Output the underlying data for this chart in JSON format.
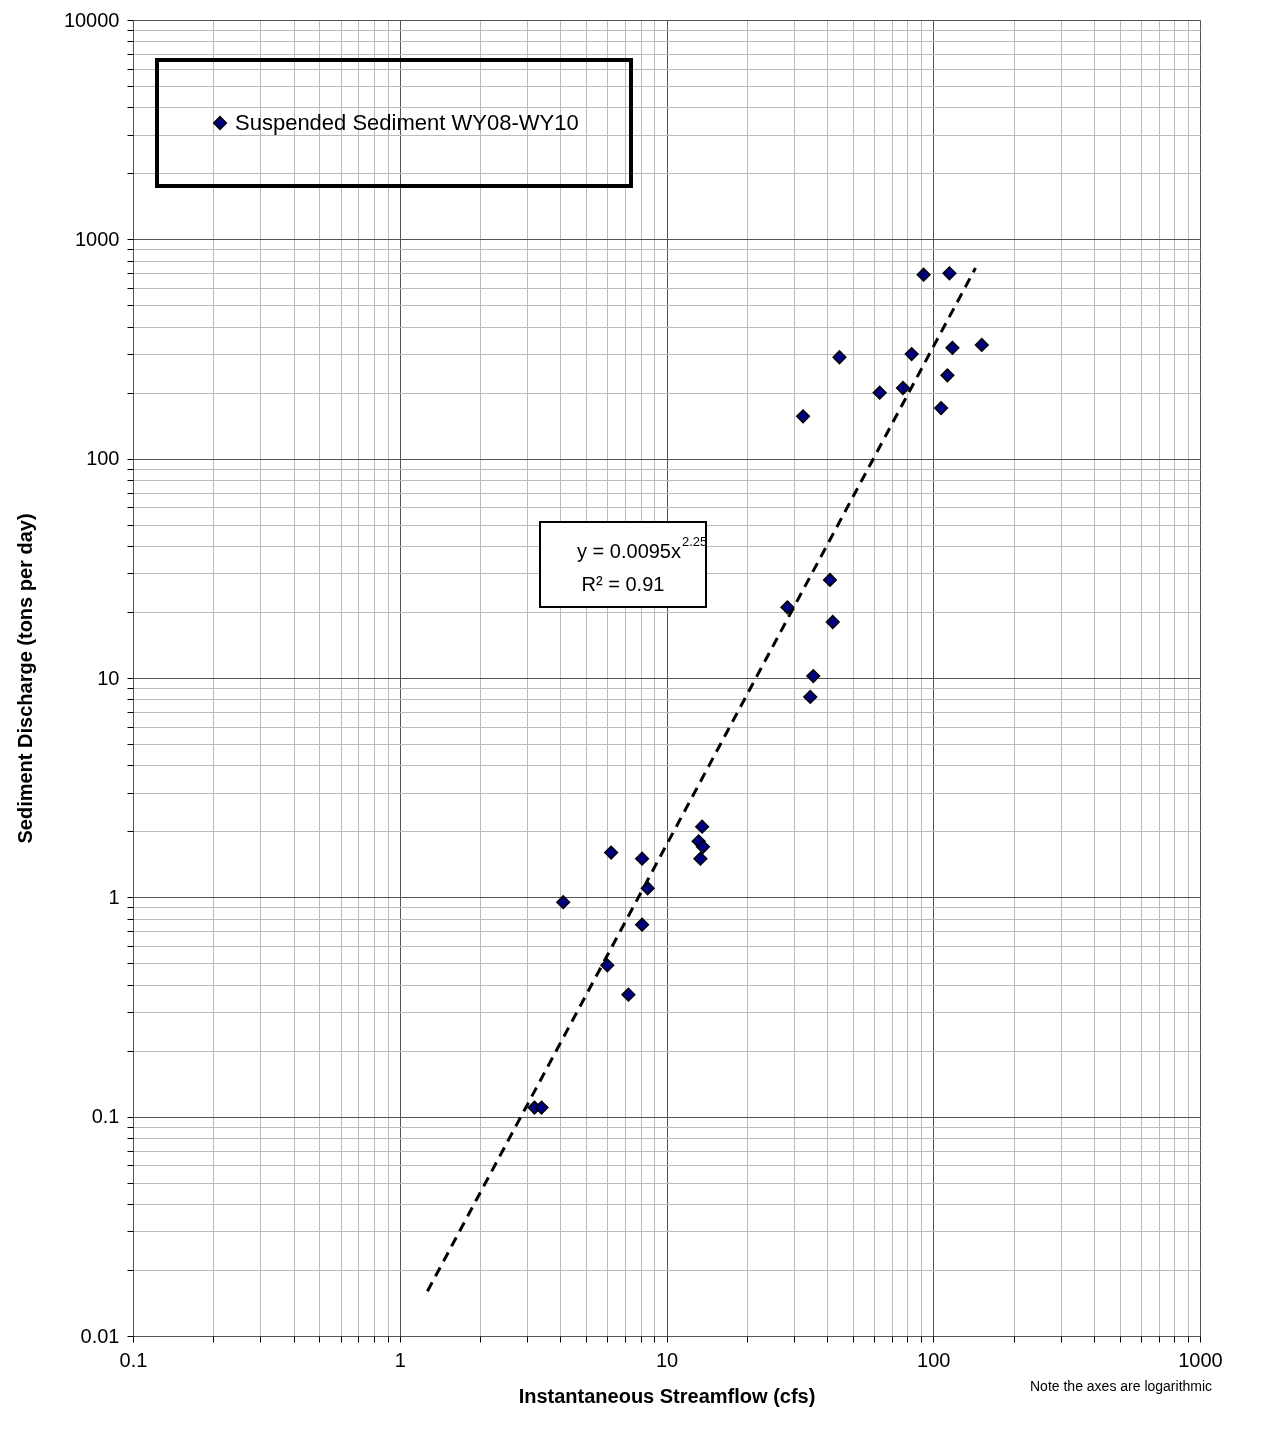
{
  "chart_data": {
    "type": "scatter",
    "xlabel": "Instantaneous Streamflow (cfs)",
    "ylabel": "Sediment Discharge (tons per day)",
    "log": "xy",
    "grid": true,
    "legend": "top left",
    "xlim": [
      0.1,
      1000
    ],
    "ylim": [
      0.01,
      10000
    ],
    "xticks": [
      0.1,
      {
        "value": 0.2,
        "label": null
      },
      {
        "value": 0.3,
        "label": null
      },
      {
        "value": 0.4,
        "label": null
      },
      {
        "value": 0.5,
        "label": null
      },
      {
        "value": 0.6,
        "label": null
      },
      {
        "value": 0.7,
        "label": null
      },
      {
        "value": 0.8,
        "label": null
      },
      {
        "value": 0.9,
        "label": null
      },
      1,
      {
        "value": 2,
        "label": null
      },
      {
        "value": 3,
        "label": null
      },
      {
        "value": 4,
        "label": null
      },
      {
        "value": 5,
        "label": null
      },
      {
        "value": 6,
        "label": null
      },
      {
        "value": 7,
        "label": null
      },
      {
        "value": 8,
        "label": null
      },
      {
        "value": 9,
        "label": null
      },
      10,
      {
        "value": 20,
        "label": null
      },
      {
        "value": 30,
        "label": null
      },
      {
        "value": 40,
        "label": null
      },
      {
        "value": 50,
        "label": null
      },
      {
        "value": 60,
        "label": null
      },
      {
        "value": 70,
        "label": null
      },
      {
        "value": 80,
        "label": null
      },
      {
        "value": 90,
        "label": null
      },
      100,
      {
        "value": 200,
        "label": null
      },
      {
        "value": 300,
        "label": null
      },
      {
        "value": 400,
        "label": null
      },
      {
        "value": 500,
        "label": null
      },
      {
        "value": 600,
        "label": null
      },
      {
        "value": 700,
        "label": null
      },
      {
        "value": 800,
        "label": null
      },
      {
        "value": 900,
        "label": null
      },
      1000
    ],
    "yticks": [
      0.01,
      {
        "value": 0.02,
        "label": null
      },
      {
        "value": 0.03,
        "label": null
      },
      {
        "value": 0.04,
        "label": null
      },
      {
        "value": 0.05,
        "label": null
      },
      {
        "value": 0.06,
        "label": null
      },
      {
        "value": 0.07,
        "label": null
      },
      {
        "value": 0.08,
        "label": null
      },
      {
        "value": 0.09,
        "label": null
      },
      0.1,
      {
        "value": 0.2,
        "label": null
      },
      {
        "value": 0.3,
        "label": null
      },
      {
        "value": 0.4,
        "label": null
      },
      {
        "value": 0.5,
        "label": null
      },
      {
        "value": 0.6,
        "label": null
      },
      {
        "value": 0.7,
        "label": null
      },
      {
        "value": 0.8,
        "label": null
      },
      {
        "value": 0.9,
        "label": null
      },
      1,
      {
        "value": 2,
        "label": null
      },
      {
        "value": 3,
        "label": null
      },
      {
        "value": 4,
        "label": null
      },
      {
        "value": 5,
        "label": null
      },
      {
        "value": 6,
        "label": null
      },
      {
        "value": 7,
        "label": null
      },
      {
        "value": 8,
        "label": null
      },
      {
        "value": 9,
        "label": null
      },
      10,
      {
        "value": 20,
        "label": null
      },
      {
        "value": 30,
        "label": null
      },
      {
        "value": 40,
        "label": null
      },
      {
        "value": 50,
        "label": null
      },
      {
        "value": 60,
        "label": null
      },
      {
        "value": 70,
        "label": null
      },
      {
        "value": 80,
        "label": null
      },
      {
        "value": 90,
        "label": null
      },
      100,
      {
        "value": 200,
        "label": null
      },
      {
        "value": 300,
        "label": null
      },
      {
        "value": 400,
        "label": null
      },
      {
        "value": 500,
        "label": null
      },
      {
        "value": 600,
        "label": null
      },
      {
        "value": 700,
        "label": null
      },
      {
        "value": 800,
        "label": null
      },
      {
        "value": 900,
        "label": null
      },
      1000,
      {
        "value": 2000,
        "label": null
      },
      {
        "value": 3000,
        "label": null
      },
      {
        "value": 4000,
        "label": null
      },
      {
        "value": 5000,
        "label": null
      },
      {
        "value": 6000,
        "label": null
      },
      {
        "value": 7000,
        "label": null
      },
      {
        "value": 8000,
        "label": null
      },
      {
        "value": 9000,
        "label": null
      },
      10000
    ],
    "annotations": [
      "y = 0.0095x$^{2.25}$",
      "R² = 0.91",
      "Note the axes are logarithmic"
    ],
    "series": [
      {
        "name": "Suspended Sediment WY08-WY10",
        "color": "#000080",
        "marker": "diamond",
        "x": [
          92,
          115,
          118,
          152,
          83,
          44.5,
          113,
          77,
          63,
          107,
          32.5,
          41,
          28.4,
          42,
          35.5,
          34.6,
          13.6,
          13.2,
          13.7,
          13.4,
          6.2,
          8.1,
          8.5,
          4.1,
          8.1,
          6.0,
          7.2,
          3.2,
          3.4
        ],
        "values": [
          690,
          700,
          320,
          330,
          300,
          290,
          240,
          210,
          200,
          170,
          156,
          28,
          21,
          18,
          10.2,
          8.2,
          2.1,
          1.8,
          1.7,
          1.5,
          1.6,
          1.5,
          1.1,
          0.95,
          0.75,
          0.49,
          0.36,
          0.11,
          0.11
        ]
      },
      {
        "type": "line",
        "color": "#000000",
        "line_style": "dashed",
        "x": [
          1.27,
          144
        ],
        "values": [
          0.016,
          740
        ]
      }
    ]
  }
}
